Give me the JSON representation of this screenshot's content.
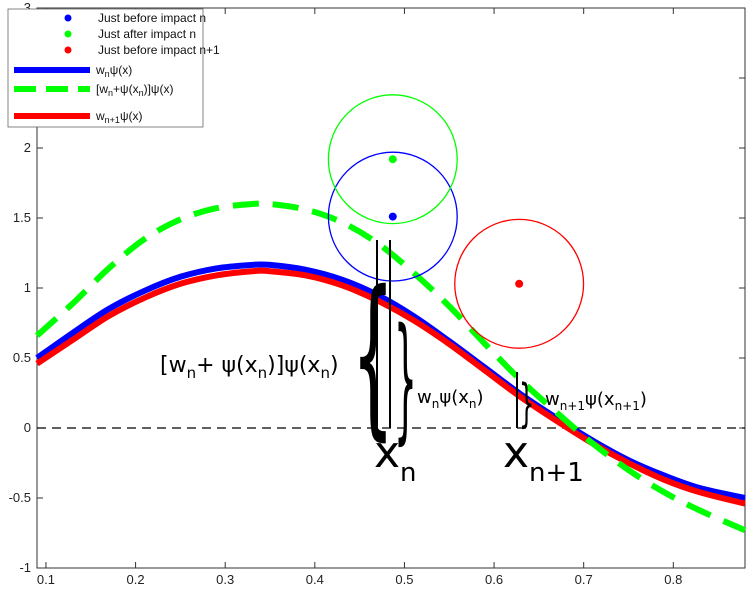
{
  "chart_data": {
    "type": "line",
    "title": "",
    "xlabel": "",
    "ylabel": "",
    "xlim": [
      0.09,
      0.88
    ],
    "ylim": [
      -1,
      3
    ],
    "xticks": [
      0.1,
      0.2,
      0.3,
      0.4,
      0.5,
      0.6,
      0.7,
      0.8
    ],
    "yticks": [
      -1,
      -0.5,
      0,
      0.5,
      1,
      1.5,
      2,
      2.5,
      3
    ],
    "xtick_labels": [
      "0.1",
      "0.2",
      "0.3",
      "0.4",
      "0.5",
      "0.6",
      "0.7",
      "0.8"
    ],
    "ytick_labels": [
      "-1",
      "-0.5",
      "0",
      "0.5",
      "1",
      "1.5",
      "2",
      "2.5",
      "3"
    ],
    "grid": false,
    "legend_position": "top-left",
    "legend": [
      {
        "label": "Just before impact n",
        "color": "#0000ff",
        "kind": "marker"
      },
      {
        "label": "Just after impact n",
        "color": "#00ff00",
        "kind": "marker"
      },
      {
        "label": "Just before impact n+1",
        "color": "#ff0000",
        "kind": "marker"
      },
      {
        "label": "w_nψ(x)",
        "color": "#0000ff",
        "kind": "line"
      },
      {
        "label": "[w_n+ψ(x_n)]ψ(x)",
        "color": "#00ff00",
        "kind": "dashed"
      },
      {
        "label": "w_n+1ψ(x)",
        "color": "#ff0000",
        "kind": "line"
      }
    ],
    "series": [
      {
        "name": "w_nψ(x)",
        "color": "#0000ff",
        "x": [
          0.09,
          0.13,
          0.17,
          0.21,
          0.25,
          0.29,
          0.33,
          0.35,
          0.39,
          0.43,
          0.47,
          0.51,
          0.55,
          0.59,
          0.63,
          0.67,
          0.71,
          0.75,
          0.79,
          0.83,
          0.88
        ],
        "y": [
          0.5,
          0.68,
          0.85,
          0.98,
          1.08,
          1.14,
          1.165,
          1.165,
          1.13,
          1.06,
          0.95,
          0.8,
          0.62,
          0.43,
          0.24,
          0.07,
          -0.09,
          -0.23,
          -0.34,
          -0.43,
          -0.5
        ]
      },
      {
        "name": "w_n+1ψ(x)",
        "color": "#ff0000",
        "x": [
          0.09,
          0.13,
          0.17,
          0.21,
          0.25,
          0.29,
          0.33,
          0.35,
          0.39,
          0.43,
          0.47,
          0.51,
          0.55,
          0.59,
          0.63,
          0.67,
          0.71,
          0.75,
          0.79,
          0.83,
          0.88
        ],
        "y": [
          0.46,
          0.63,
          0.8,
          0.93,
          1.03,
          1.09,
          1.12,
          1.12,
          1.09,
          1.02,
          0.91,
          0.77,
          0.6,
          0.41,
          0.22,
          0.05,
          -0.11,
          -0.25,
          -0.37,
          -0.46,
          -0.54
        ]
      },
      {
        "name": "[w_n+ψ(x_n)]ψ(x)",
        "color": "#00ff00",
        "dashed": true,
        "x": [
          0.09,
          0.13,
          0.17,
          0.21,
          0.25,
          0.29,
          0.33,
          0.35,
          0.39,
          0.43,
          0.47,
          0.51,
          0.55,
          0.59,
          0.63,
          0.67,
          0.71,
          0.75,
          0.79,
          0.83,
          0.88
        ],
        "y": [
          0.66,
          0.89,
          1.14,
          1.35,
          1.49,
          1.57,
          1.6,
          1.6,
          1.56,
          1.47,
          1.32,
          1.11,
          0.87,
          0.6,
          0.34,
          0.11,
          -0.11,
          -0.3,
          -0.46,
          -0.59,
          -0.73
        ]
      }
    ],
    "points": [
      {
        "label": "Just before impact n",
        "x": 0.487,
        "y": 1.51,
        "color": "#0000ff",
        "circle_radius": 0.46
      },
      {
        "label": "Just after impact n",
        "x": 0.487,
        "y": 1.92,
        "color": "#00ff00",
        "circle_radius": 0.46
      },
      {
        "label": "Just before impact n+1",
        "x": 0.628,
        "y": 1.03,
        "color": "#ff0000",
        "circle_radius": 0.46
      }
    ],
    "zero_line": {
      "y": 0,
      "style": "dashed",
      "color": "#000000"
    },
    "annotations": [
      {
        "text_main": "[w",
        "sub1": "n",
        "mid1": "+ ψ(x",
        "sub2": "n",
        "end": ")]ψ(x",
        "sub3": "n",
        "close": ")"
      },
      {
        "text_main": "w",
        "sub1": "n",
        "mid1": "ψ(x",
        "sub2": "n",
        "end": ")"
      },
      {
        "text_main": "w",
        "sub1": "n+1",
        "mid1": "ψ(x",
        "sub2": "n+1",
        "end": ")"
      },
      {
        "text_main": "x",
        "sub1": "n"
      },
      {
        "text_main": "x",
        "sub1": "n+1"
      }
    ]
  }
}
